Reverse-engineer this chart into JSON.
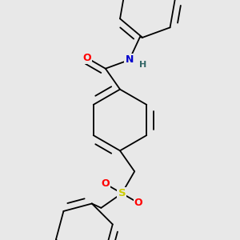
{
  "bg_color": "#e8e8e8",
  "bond_color": "#000000",
  "atom_colors": {
    "O": "#ff0000",
    "N": "#0000cc",
    "S": "#cccc00",
    "H": "#336666",
    "C": "#000000"
  },
  "lw": 1.3
}
